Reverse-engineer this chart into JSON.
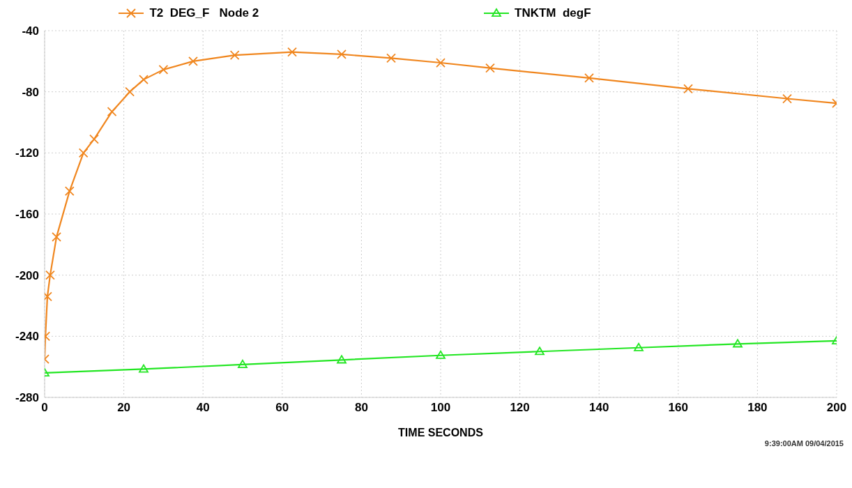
{
  "chart_data": {
    "type": "line",
    "xlabel": "TIME  SECONDS",
    "annotations": [
      "9:39:00AM 09/04/2015"
    ],
    "xlim": [
      0,
      200
    ],
    "xticks": [
      0,
      20,
      40,
      60,
      80,
      100,
      120,
      140,
      160,
      180,
      200
    ],
    "ylim": [
      -280,
      -40
    ],
    "yticks": [
      -280,
      -240,
      -200,
      -160,
      -120,
      -80,
      -40
    ],
    "grid": true,
    "legend": "top",
    "series": [
      {
        "name": "T2  DEG_F   Node 2",
        "color": "#f0861e",
        "marker": "cross",
        "x": [
          0,
          0.2,
          0.7,
          1.4,
          3,
          6.3,
          9.8,
          12.5,
          17,
          21.5,
          25,
          30,
          37.5,
          48,
          62.5,
          75,
          87.5,
          100,
          112.5,
          137.5,
          162.5,
          187.5,
          200
        ],
        "values": [
          -255,
          -240,
          -214,
          -200,
          -175,
          -145,
          -120,
          -111,
          -93,
          -80,
          -72,
          -65.5,
          -60,
          -56,
          -54,
          -55.5,
          -58,
          -61,
          -64.5,
          -71,
          -78,
          -84.5,
          -87.5
        ]
      },
      {
        "name": "TNKTM  degF",
        "color": "#22e622",
        "marker": "triangle",
        "x": [
          0,
          25,
          50,
          75,
          100,
          125,
          150,
          175,
          200
        ],
        "values": [
          -264,
          -261.5,
          -258.5,
          -255.5,
          -252.5,
          -250,
          -247.5,
          -245,
          -243
        ]
      }
    ]
  }
}
